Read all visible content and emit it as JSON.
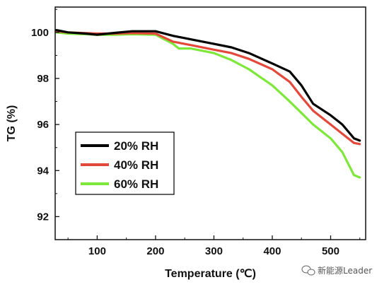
{
  "chart_data": {
    "type": "line",
    "xlabel": "Temperature (℃)",
    "ylabel": "TG (%)",
    "xlim": [
      28,
      560
    ],
    "ylim": [
      91,
      101.1
    ],
    "xticks": [
      100,
      200,
      300,
      400,
      500
    ],
    "yticks": [
      92,
      94,
      96,
      98,
      100
    ],
    "grid": false,
    "legend_position": "lower-left",
    "series": [
      {
        "name": "20% RH",
        "color": "#000000",
        "x": [
          30,
          50,
          80,
          100,
          130,
          160,
          200,
          230,
          260,
          300,
          330,
          360,
          400,
          430,
          450,
          470,
          500,
          520,
          540,
          550
        ],
        "y": [
          100.1,
          100.0,
          99.95,
          99.9,
          99.98,
          100.05,
          100.05,
          99.85,
          99.7,
          99.5,
          99.35,
          99.1,
          98.65,
          98.3,
          97.7,
          96.9,
          96.4,
          96.0,
          95.4,
          95.3
        ]
      },
      {
        "name": "40% RH",
        "color": "#e2493b",
        "x": [
          30,
          50,
          80,
          100,
          130,
          160,
          200,
          230,
          260,
          300,
          330,
          360,
          400,
          430,
          450,
          470,
          500,
          520,
          540,
          550
        ],
        "y": [
          100.05,
          100.0,
          99.97,
          99.95,
          99.95,
          99.97,
          99.95,
          99.6,
          99.45,
          99.25,
          99.1,
          98.85,
          98.4,
          97.85,
          97.2,
          96.6,
          96.0,
          95.6,
          95.2,
          95.15
        ]
      },
      {
        "name": "60% RH",
        "color": "#7de83a",
        "x": [
          30,
          50,
          80,
          100,
          130,
          160,
          200,
          230,
          240,
          260,
          300,
          330,
          360,
          400,
          430,
          450,
          470,
          500,
          520,
          540,
          550
        ],
        "y": [
          100.0,
          99.95,
          99.92,
          99.9,
          99.9,
          99.92,
          99.9,
          99.5,
          99.3,
          99.3,
          99.1,
          98.8,
          98.4,
          97.7,
          97.0,
          96.5,
          96.0,
          95.4,
          94.8,
          93.8,
          93.7
        ]
      }
    ]
  },
  "watermark": {
    "text": "新能源Leader",
    "icon": "wechat-icon"
  }
}
